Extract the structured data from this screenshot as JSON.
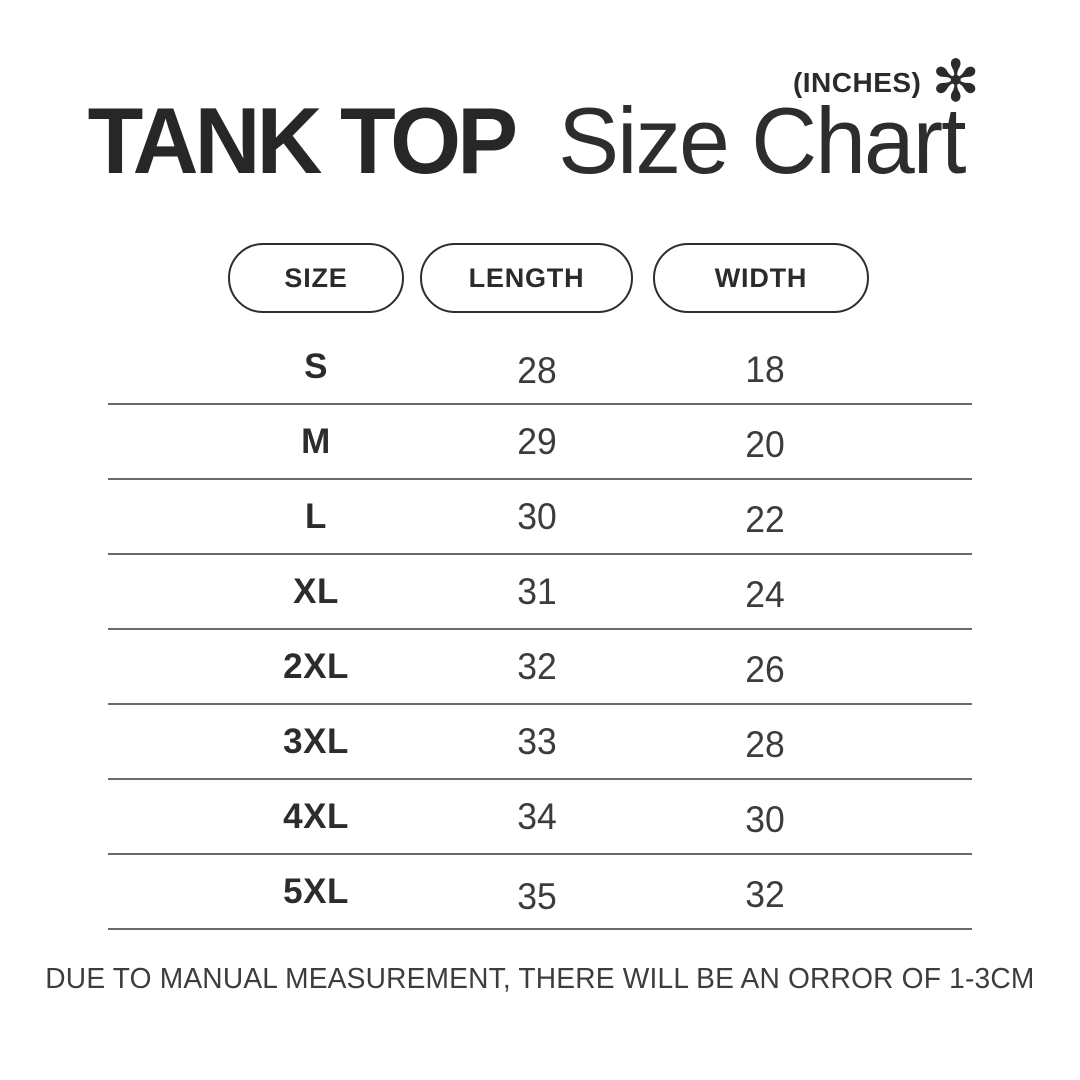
{
  "header": {
    "units_label": "(INCHES)",
    "asterisk_glyph": "✻",
    "title_bold": "TANK TOP",
    "title_regular": "Size Chart"
  },
  "table": {
    "columns": [
      "SIZE",
      "LENGTH",
      "WIDTH"
    ],
    "rows": [
      {
        "size": "S",
        "length": "28",
        "width": "18"
      },
      {
        "size": "M",
        "length": "29",
        "width": "20"
      },
      {
        "size": "L",
        "length": "30",
        "width": "22"
      },
      {
        "size": "XL",
        "length": "31",
        "width": "24"
      },
      {
        "size": "2XL",
        "length": "32",
        "width": "26"
      },
      {
        "size": "3XL",
        "length": "33",
        "width": "28"
      },
      {
        "size": "4XL",
        "length": "34",
        "width": "30"
      },
      {
        "size": "5XL",
        "length": "35",
        "width": "32"
      }
    ]
  },
  "footer": {
    "note": "DUE TO MANUAL MEASUREMENT, THERE WILL BE AN ORROR OF 1-3CM"
  },
  "colors": {
    "text": "#2b2b2b",
    "text-soft": "#3c3c3c",
    "divider": "#6a6a6a",
    "background": "#ffffff"
  },
  "chart_data": {
    "type": "table",
    "title": "TANK TOP Size Chart",
    "units": "INCHES",
    "columns": [
      "SIZE",
      "LENGTH",
      "WIDTH"
    ],
    "rows": [
      [
        "S",
        28,
        18
      ],
      [
        "M",
        29,
        20
      ],
      [
        "L",
        30,
        22
      ],
      [
        "XL",
        31,
        24
      ],
      [
        "2XL",
        32,
        26
      ],
      [
        "3XL",
        33,
        28
      ],
      [
        "4XL",
        34,
        30
      ],
      [
        "5XL",
        35,
        32
      ]
    ],
    "note": "DUE TO MANUAL MEASUREMENT, THERE WILL BE AN ORROR OF 1-3CM"
  }
}
